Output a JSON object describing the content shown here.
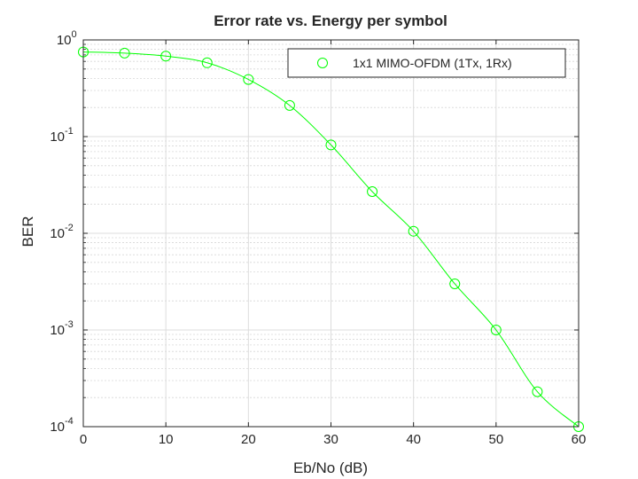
{
  "chart_data": {
    "type": "line",
    "title": "Error rate vs. Energy per symbol",
    "xlabel": "Eb/No (dB)",
    "ylabel": "BER",
    "xlim": [
      0,
      60
    ],
    "ylim": [
      0.0001,
      1
    ],
    "yscale": "log",
    "grid": true,
    "minor_grid": true,
    "legend_position": "top-right",
    "x_ticks": [
      "0",
      "10",
      "20",
      "30",
      "40",
      "50",
      "60"
    ],
    "y_ticks": [
      {
        "base": "10",
        "exp": "0"
      },
      {
        "base": "10",
        "exp": "-1"
      },
      {
        "base": "10",
        "exp": "-2"
      },
      {
        "base": "10",
        "exp": "-3"
      },
      {
        "base": "10",
        "exp": "-4"
      }
    ],
    "series": [
      {
        "name": "1x1 MIMO-OFDM (1Tx, 1Rx)",
        "color": "#00ff00",
        "marker": "circle",
        "x": [
          0,
          5,
          10,
          15,
          20,
          25,
          30,
          35,
          40,
          45,
          50,
          55,
          60
        ],
        "y": [
          0.75,
          0.73,
          0.68,
          0.58,
          0.39,
          0.21,
          0.082,
          0.027,
          0.0105,
          0.003,
          0.001,
          0.00023,
          0.0001
        ]
      }
    ]
  }
}
